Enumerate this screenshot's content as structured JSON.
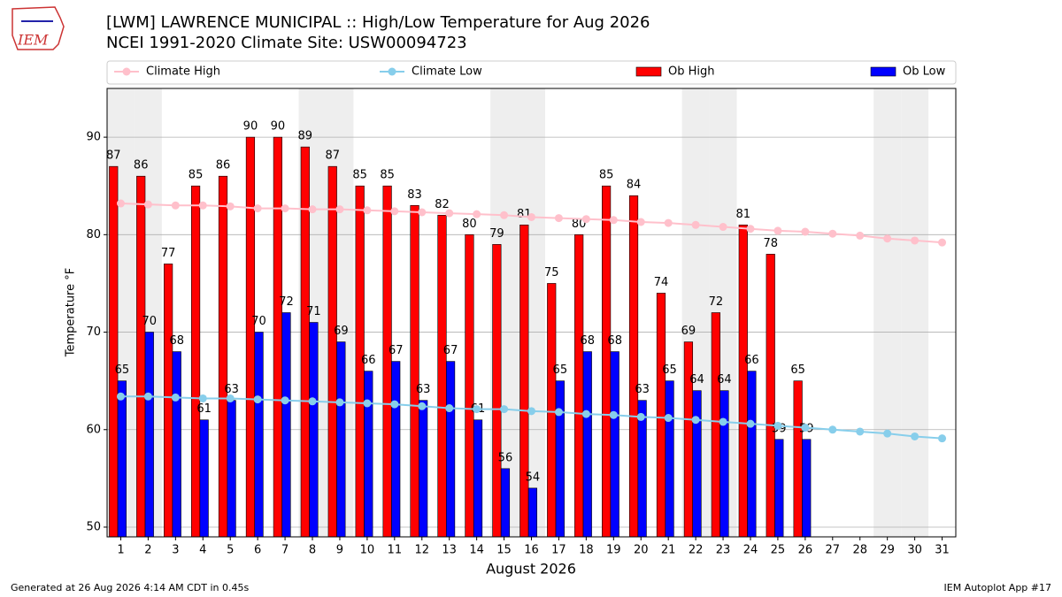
{
  "logo_text": "IEM",
  "footer_left": "Generated at 26 Aug 2026 4:14 AM CDT in 0.45s",
  "footer_right": "IEM Autoplot App #17",
  "chart_data": {
    "type": "bar_line",
    "title": "[LWM] LAWRENCE MUNICIPAL :: High/Low Temperature for Aug 2026",
    "subtitle": "NCEI 1991-2020 Climate Site: USW00094723",
    "xlabel": "August 2026",
    "ylabel": "Temperature °F",
    "x": [
      1,
      2,
      3,
      4,
      5,
      6,
      7,
      8,
      9,
      10,
      11,
      12,
      13,
      14,
      15,
      16,
      17,
      18,
      19,
      20,
      21,
      22,
      23,
      24,
      25,
      26,
      27,
      28,
      29,
      30,
      31
    ],
    "xlim": [
      0.5,
      31.5
    ],
    "xticks": [
      1,
      2,
      3,
      4,
      5,
      6,
      7,
      8,
      9,
      10,
      11,
      12,
      13,
      14,
      15,
      16,
      17,
      18,
      19,
      20,
      21,
      22,
      23,
      24,
      25,
      26,
      27,
      28,
      29,
      30,
      31
    ],
    "ylim": [
      49,
      95
    ],
    "yticks": [
      50,
      60,
      70,
      80,
      90
    ],
    "grid": true,
    "shaded_days": [
      1,
      2,
      8,
      9,
      15,
      16,
      22,
      23,
      29,
      30
    ],
    "series": [
      {
        "name": "Climate High",
        "kind": "line",
        "color": "#ffc0cb",
        "values": [
          83.2,
          83.1,
          83.0,
          83.0,
          82.9,
          82.7,
          82.7,
          82.6,
          82.6,
          82.5,
          82.4,
          82.3,
          82.2,
          82.1,
          82.0,
          81.8,
          81.7,
          81.6,
          81.5,
          81.3,
          81.2,
          81.0,
          80.8,
          80.6,
          80.4,
          80.3,
          80.1,
          79.9,
          79.6,
          79.4,
          79.2
        ]
      },
      {
        "name": "Climate Low",
        "kind": "line",
        "color": "#87ceeb",
        "values": [
          63.4,
          63.4,
          63.3,
          63.2,
          63.2,
          63.1,
          63.0,
          62.9,
          62.8,
          62.7,
          62.6,
          62.4,
          62.2,
          62.1,
          62.1,
          61.9,
          61.8,
          61.6,
          61.5,
          61.3,
          61.2,
          61.0,
          60.8,
          60.6,
          60.4,
          60.2,
          60.0,
          59.8,
          59.6,
          59.3,
          59.1
        ]
      },
      {
        "name": "Ob High",
        "kind": "bar",
        "color": "#ff0000",
        "values": [
          87,
          86,
          77,
          85,
          86,
          90,
          90,
          89,
          87,
          85,
          85,
          83,
          82,
          80,
          79,
          81,
          75,
          80,
          85,
          84,
          74,
          69,
          72,
          81,
          78,
          65,
          null,
          null,
          null,
          null,
          null
        ]
      },
      {
        "name": "Ob Low",
        "kind": "bar",
        "color": "#0000ff",
        "values": [
          65,
          70,
          68,
          61,
          63,
          70,
          72,
          71,
          69,
          66,
          67,
          63,
          67,
          61,
          56,
          54,
          65,
          68,
          68,
          63,
          65,
          64,
          64,
          66,
          59,
          59,
          null,
          null,
          null,
          null,
          null
        ]
      }
    ],
    "legend": "top"
  }
}
